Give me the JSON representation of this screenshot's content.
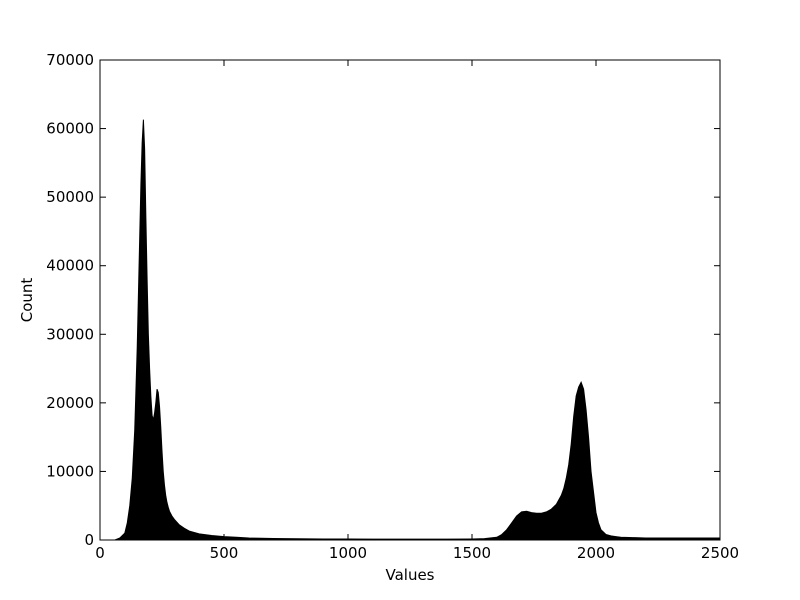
{
  "chart_data": {
    "type": "area",
    "title": "",
    "xlabel": "Values",
    "ylabel": "Count",
    "xlim": [
      0,
      2500
    ],
    "ylim": [
      0,
      70000
    ],
    "xticks": [
      0,
      500,
      1000,
      1500,
      2000,
      2500
    ],
    "yticks": [
      0,
      10000,
      20000,
      30000,
      40000,
      50000,
      60000,
      70000
    ],
    "xtick_labels": [
      "0",
      "500",
      "1000",
      "1500",
      "2000",
      "2500"
    ],
    "ytick_labels": [
      "0",
      "10000",
      "20000",
      "30000",
      "40000",
      "50000",
      "60000",
      "70000"
    ],
    "grid": false,
    "fill_color": "#000000",
    "series": [
      {
        "x": [
          0,
          60,
          80,
          100,
          110,
          120,
          130,
          140,
          150,
          160,
          165,
          170,
          175,
          180,
          185,
          190,
          195,
          200,
          205,
          210,
          215,
          220,
          225,
          230,
          235,
          240,
          245,
          250,
          255,
          260,
          265,
          270,
          275,
          280,
          290,
          300,
          320,
          340,
          360,
          400,
          450,
          500,
          550,
          600,
          650,
          700,
          800,
          900,
          1000,
          1100,
          1200,
          1300,
          1400,
          1500,
          1550,
          1600,
          1620,
          1640,
          1660,
          1680,
          1700,
          1720,
          1740,
          1760,
          1780,
          1800,
          1820,
          1840,
          1860,
          1870,
          1880,
          1890,
          1900,
          1910,
          1920,
          1930,
          1940,
          1950,
          1960,
          1970,
          1980,
          1990,
          2000,
          2010,
          2020,
          2040,
          2060,
          2080,
          2100,
          2150,
          2200,
          2300,
          2400,
          2500
        ],
        "y": [
          0,
          0,
          300,
          1000,
          2500,
          5000,
          9000,
          16000,
          28000,
          44000,
          52000,
          58000,
          61300,
          57000,
          47000,
          38000,
          30000,
          25000,
          21000,
          18200,
          17500,
          18500,
          20000,
          22000,
          21500,
          19500,
          16500,
          13000,
          10000,
          8000,
          6500,
          5500,
          4800,
          4200,
          3500,
          3000,
          2200,
          1700,
          1300,
          900,
          650,
          500,
          400,
          300,
          250,
          220,
          180,
          150,
          140,
          130,
          120,
          120,
          130,
          150,
          200,
          400,
          800,
          1500,
          2500,
          3500,
          4100,
          4200,
          4000,
          3900,
          3900,
          4100,
          4500,
          5200,
          6500,
          7500,
          9000,
          11000,
          14000,
          18000,
          21000,
          22300,
          23000,
          22000,
          19000,
          15000,
          10000,
          7000,
          4000,
          2500,
          1500,
          800,
          600,
          500,
          400,
          350,
          300,
          300,
          300,
          300
        ]
      }
    ]
  }
}
